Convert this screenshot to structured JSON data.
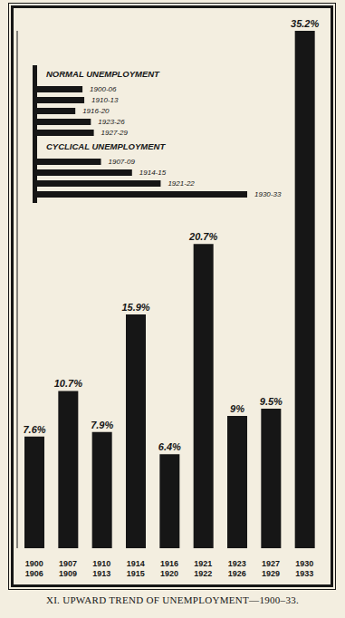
{
  "chart_data": [
    {
      "type": "bar",
      "title": "XI. UPWARD TREND OF UNEMPLOYMENT—1900–33.",
      "categories": [
        "1900\n1906",
        "1907\n1909",
        "1910\n1913",
        "1914\n1915",
        "1916\n1920",
        "1921\n1922",
        "1923\n1926",
        "1927\n1929",
        "1930\n1933"
      ],
      "values": [
        7.6,
        10.7,
        7.9,
        15.9,
        6.4,
        20.7,
        9,
        9.5,
        35.2
      ],
      "value_labels": [
        "7.6%",
        "10.7%",
        "7.9%",
        "15.9%",
        "6.4%",
        "20.7%",
        "9%",
        "9.5%",
        "35.2%"
      ],
      "color": "#161616",
      "ylim": [
        0,
        35.2
      ],
      "data_labels": true,
      "tick_labels": "x"
    },
    {
      "type": "bar",
      "orientation": "horizontal",
      "title": "NORMAL UNEMPLOYMENT",
      "categories": [
        "1900-06",
        "1910-13",
        "1916-20",
        "1923-26",
        "1927-29"
      ],
      "values": [
        7.6,
        7.9,
        6.4,
        9,
        9.5
      ],
      "xlim": [
        0,
        35.2
      ],
      "color": "#161616",
      "tick_labels": false
    },
    {
      "type": "bar",
      "orientation": "horizontal",
      "title": "CYCLICAL UNEMPLOYMENT",
      "categories": [
        "1907-09",
        "1914-15",
        "1921-22",
        "1930-33"
      ],
      "values": [
        10.7,
        15.9,
        20.7,
        35.2
      ],
      "xlim": [
        0,
        35.2
      ],
      "color": "#161616",
      "tick_labels": false
    }
  ]
}
